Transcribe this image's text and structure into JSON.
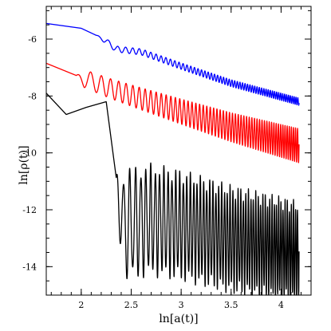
{
  "chart_data": {
    "type": "line",
    "xlabel": "ln[a(t)]",
    "ylabel": "ln[ρ(t)]",
    "xlim": [
      1.65,
      4.3
    ],
    "ylim": [
      -15,
      -4.85
    ],
    "x_ticks": [
      2,
      2.5,
      3,
      3.5,
      4
    ],
    "x_tick_labels": [
      "2",
      "2.5",
      "3",
      "3.5",
      "4"
    ],
    "y_ticks": [
      -14,
      -12,
      -10,
      -8,
      -6
    ],
    "y_tick_labels": [
      "-14",
      "-12",
      "-10",
      "-8",
      "-6"
    ],
    "grid": false,
    "legend": "none",
    "series": [
      {
        "color": "#0000ff",
        "x_range": [
          1.65,
          4.18
        ],
        "trend": [
          [
            1.65,
            -5.45
          ],
          [
            2.0,
            -5.62
          ],
          [
            2.2,
            -5.95
          ],
          [
            2.35,
            -6.35
          ],
          [
            2.6,
            -6.45
          ],
          [
            3.0,
            -6.95
          ],
          [
            3.5,
            -7.55
          ],
          [
            4.18,
            -8.2
          ]
        ],
        "oscillation": {
          "start": 2.15,
          "amplitude_start": 0.1,
          "amplitude_end": 0.13,
          "first_period": 0.18,
          "final_period": 0.018
        }
      },
      {
        "color": "#ff0000",
        "x_range": [
          1.65,
          4.18
        ],
        "trend": [
          [
            1.65,
            -6.85
          ],
          [
            2.0,
            -7.35
          ],
          [
            2.3,
            -7.75
          ],
          [
            2.6,
            -8.1
          ],
          [
            3.0,
            -8.55
          ],
          [
            3.5,
            -9.1
          ],
          [
            4.18,
            -9.75
          ]
        ],
        "oscillation": {
          "start": 1.95,
          "amplitude_start": 0.3,
          "amplitude_end": 0.6,
          "first_period": 0.22,
          "final_period": 0.02
        }
      },
      {
        "color": "#000000",
        "x_range": [
          1.65,
          4.18
        ],
        "trend": [
          [
            1.65,
            -7.9
          ],
          [
            1.85,
            -8.65
          ],
          [
            2.05,
            -8.4
          ],
          [
            2.25,
            -8.2
          ],
          [
            2.4,
            -12.2
          ],
          [
            2.7,
            -12.0
          ],
          [
            3.0,
            -12.2
          ],
          [
            3.5,
            -12.7
          ],
          [
            4.18,
            -13.2
          ]
        ],
        "oscillation": {
          "start": 2.35,
          "amplitude_start": 1.8,
          "amplitude_end": 1.6,
          "first_period": 0.09,
          "final_period": 0.02
        }
      }
    ]
  }
}
